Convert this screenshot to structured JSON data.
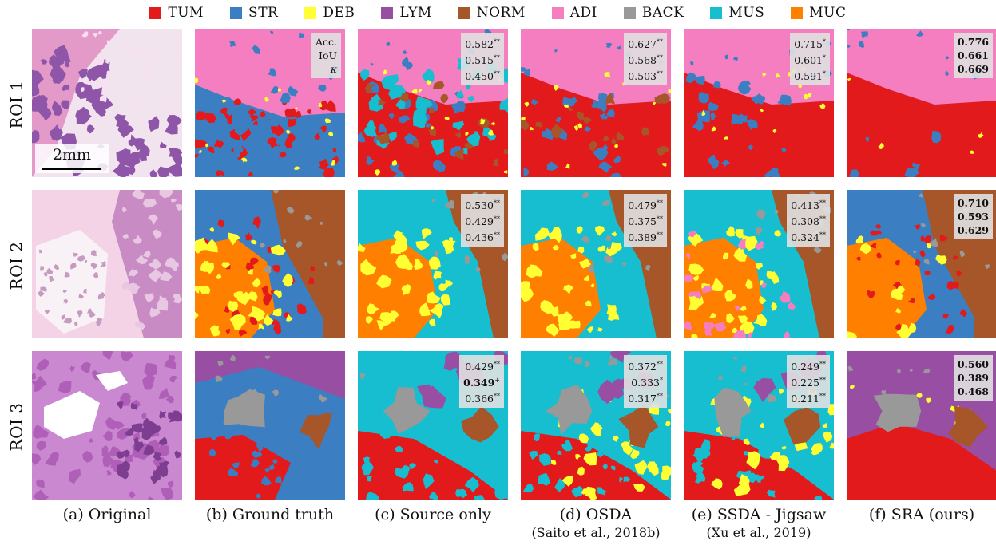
{
  "legend": [
    {
      "label": "TUM",
      "color": "#e31a1c"
    },
    {
      "label": "STR",
      "color": "#3b7fc2"
    },
    {
      "label": "DEB",
      "color": "#ffff33"
    },
    {
      "label": "LYM",
      "color": "#984ea3"
    },
    {
      "label": "NORM",
      "color": "#a65628"
    },
    {
      "label": "ADI",
      "color": "#f47ec0"
    },
    {
      "label": "BACK",
      "color": "#999999"
    },
    {
      "label": "MUS",
      "color": "#17becf"
    },
    {
      "label": "MUC",
      "color": "#ff7f00"
    }
  ],
  "rows": [
    "ROI 1",
    "ROI 2",
    "ROI 3"
  ],
  "metric_labels": [
    "Acc.",
    "IoU",
    "κ"
  ],
  "scalebar_label": "2mm",
  "columns": [
    {
      "caption": "(a) Original",
      "subcaption": ""
    },
    {
      "caption": "(b) Ground truth",
      "subcaption": ""
    },
    {
      "caption": "(c) Source only",
      "subcaption": ""
    },
    {
      "caption": "(d) OSDA",
      "subcaption": "(Saito et al., 2018b)"
    },
    {
      "caption": "(e) SSDA - Jigsaw",
      "subcaption": "(Xu et al., 2019)"
    },
    {
      "caption": "(f) SRA (ours)",
      "subcaption": ""
    }
  ],
  "metrics": {
    "source_only": [
      [
        {
          "v": "0.582",
          "s": "**"
        },
        {
          "v": "0.515",
          "s": "**"
        },
        {
          "v": "0.450",
          "s": "**"
        }
      ],
      [
        {
          "v": "0.530",
          "s": "**"
        },
        {
          "v": "0.429",
          "s": "**"
        },
        {
          "v": "0.436",
          "s": "**"
        }
      ],
      [
        {
          "v": "0.429",
          "s": "**"
        },
        {
          "v": "0.349",
          "s": "+",
          "bold": true
        },
        {
          "v": "0.366",
          "s": "**"
        }
      ]
    ],
    "osda": [
      [
        {
          "v": "0.627",
          "s": "**"
        },
        {
          "v": "0.568",
          "s": "**"
        },
        {
          "v": "0.503",
          "s": "**"
        }
      ],
      [
        {
          "v": "0.479",
          "s": "**"
        },
        {
          "v": "0.375",
          "s": "**"
        },
        {
          "v": "0.389",
          "s": "**"
        }
      ],
      [
        {
          "v": "0.372",
          "s": "**"
        },
        {
          "v": "0.333",
          "s": "*"
        },
        {
          "v": "0.317",
          "s": "**"
        }
      ]
    ],
    "ssda_jigsaw": [
      [
        {
          "v": "0.715",
          "s": "*"
        },
        {
          "v": "0.601",
          "s": "*"
        },
        {
          "v": "0.591",
          "s": "*"
        }
      ],
      [
        {
          "v": "0.413",
          "s": "**"
        },
        {
          "v": "0.308",
          "s": "**"
        },
        {
          "v": "0.324",
          "s": "**"
        }
      ],
      [
        {
          "v": "0.249",
          "s": "**"
        },
        {
          "v": "0.225",
          "s": "**"
        },
        {
          "v": "0.211",
          "s": "**"
        }
      ]
    ],
    "sra": [
      [
        {
          "v": "0.776",
          "s": "",
          "bold": true
        },
        {
          "v": "0.661",
          "s": "",
          "bold": true
        },
        {
          "v": "0.669",
          "s": "",
          "bold": true
        }
      ],
      [
        {
          "v": "0.710",
          "s": "",
          "bold": true
        },
        {
          "v": "0.593",
          "s": "",
          "bold": true
        },
        {
          "v": "0.629",
          "s": "",
          "bold": true
        }
      ],
      [
        {
          "v": "0.560",
          "s": "",
          "bold": true
        },
        {
          "v": "0.389",
          "s": "",
          "bold": true
        },
        {
          "v": "0.468",
          "s": "",
          "bold": true
        }
      ]
    ]
  },
  "panel_colors": {
    "tum": "#e31a1c",
    "str": "#3b7fc2",
    "deb": "#ffff33",
    "lym": "#984ea3",
    "norm": "#a65628",
    "adi": "#f47ec0",
    "back": "#999999",
    "mus": "#17becf",
    "muc": "#ff7f00",
    "tissue_bg": "#f2e4ef",
    "tissue_purple": "#8e55a8",
    "tissue_pink": "#e39ac8"
  }
}
